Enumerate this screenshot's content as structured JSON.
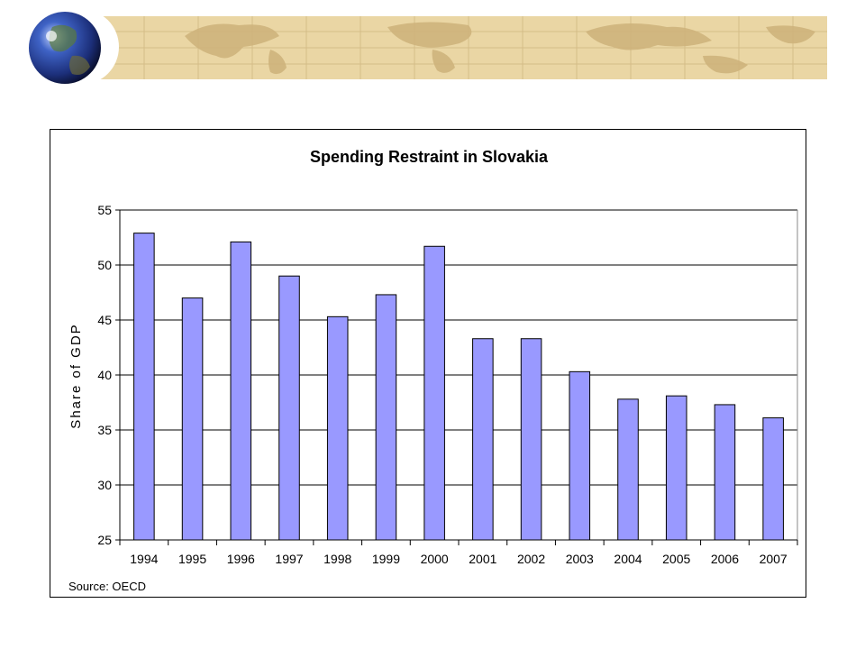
{
  "banner": {
    "globe_icon": "globe-icon",
    "map_background": "world-map-strip",
    "colors": {
      "map_fill": "#e8d3a0",
      "map_land": "#cdb27a",
      "globe_blue": "#2a4aa8"
    }
  },
  "chart_data": {
    "type": "bar",
    "title": "Spending Restraint in Slovakia",
    "xlabel": "",
    "ylabel": "Share of GDP",
    "source": "Source: OECD",
    "categories": [
      "1994",
      "1995",
      "1996",
      "1997",
      "1998",
      "1999",
      "2000",
      "2001",
      "2002",
      "2003",
      "2004",
      "2005",
      "2006",
      "2007"
    ],
    "values": [
      52.9,
      47.0,
      52.1,
      49.0,
      45.3,
      47.3,
      51.7,
      43.3,
      43.3,
      40.3,
      37.8,
      38.1,
      37.3,
      36.1
    ],
    "ylim": [
      25,
      55
    ],
    "yticks": [
      "25",
      "30",
      "35",
      "40",
      "45",
      "50",
      "55"
    ],
    "grid": true,
    "legend": "none",
    "bar_color": "#9999ff"
  }
}
